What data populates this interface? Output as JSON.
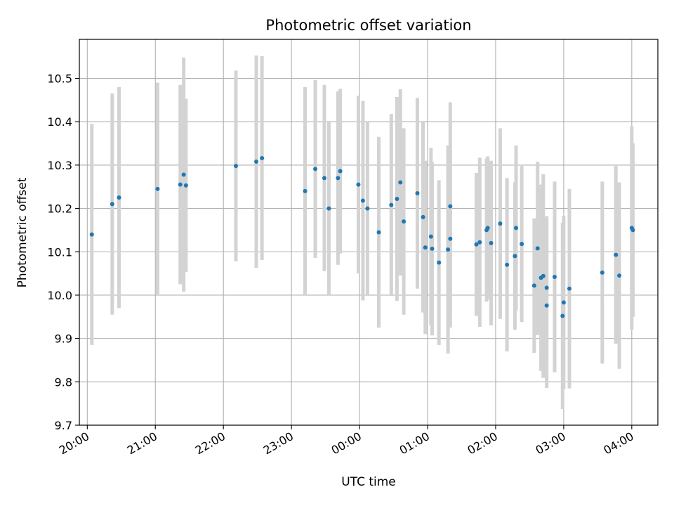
{
  "chart_data": {
    "type": "scatter",
    "title": "Photometric offset variation",
    "xlabel": "UTC time",
    "ylabel": "Photometric offset",
    "grid": true,
    "xlim": [
      "19:53",
      "04:23"
    ],
    "ylim": [
      9.7,
      10.59
    ],
    "x_ticks": [
      "20:00",
      "21:00",
      "22:00",
      "23:00",
      "00:00",
      "01:00",
      "02:00",
      "03:00",
      "04:00"
    ],
    "y_ticks": [
      "9.7",
      "9.8",
      "9.9",
      "10.0",
      "10.1",
      "10.2",
      "10.3",
      "10.4",
      "10.5"
    ],
    "point_color": "#1f77b4",
    "errorbar_color": "#d3d3d3",
    "series": [
      {
        "x": [
          "20:04",
          "20:22",
          "20:28",
          "21:02",
          "21:22",
          "21:25",
          "21:27",
          "22:11",
          "22:29",
          "22:34",
          "23:12",
          "23:21",
          "23:29",
          "23:33",
          "23:41",
          "23:43",
          "23:59",
          "00:03",
          "00:07",
          "00:17",
          "00:28",
          "00:33",
          "00:36",
          "00:39",
          "00:51",
          "00:56",
          "00:58",
          "01:03",
          "01:04",
          "01:10",
          "01:18",
          "01:20",
          "01:20",
          "01:43",
          "01:46",
          "01:52",
          "01:53",
          "01:56",
          "02:04",
          "02:10",
          "02:17",
          "02:18",
          "02:23",
          "02:34",
          "02:37",
          "02:40",
          "02:42",
          "02:45",
          "02:45",
          "02:52",
          "02:59",
          "03:00",
          "03:05",
          "03:34",
          "03:46",
          "03:49",
          "04:00",
          "04:01"
        ],
        "y": [
          10.14,
          10.21,
          10.225,
          10.245,
          10.255,
          10.278,
          10.253,
          10.298,
          10.308,
          10.316,
          10.24,
          10.291,
          10.27,
          10.2,
          10.27,
          10.286,
          10.255,
          10.218,
          10.2,
          10.145,
          10.208,
          10.222,
          10.26,
          10.17,
          10.235,
          10.18,
          10.11,
          10.135,
          10.107,
          10.075,
          10.105,
          10.205,
          10.13,
          10.117,
          10.122,
          10.15,
          10.155,
          10.12,
          10.165,
          10.07,
          10.09,
          10.155,
          10.118,
          10.022,
          10.108,
          10.04,
          10.044,
          9.976,
          10.017,
          10.042,
          9.952,
          9.983,
          10.015,
          10.052,
          10.093,
          10.045,
          10.155,
          10.15
        ],
        "y_err": [
          0.255,
          0.255,
          0.255,
          0.245,
          0.23,
          0.27,
          0.2,
          0.22,
          0.245,
          0.235,
          0.24,
          0.205,
          0.215,
          0.2,
          0.2,
          0.19,
          0.205,
          0.23,
          0.2,
          0.22,
          0.21,
          0.235,
          0.215,
          0.215,
          0.22,
          0.22,
          0.2,
          0.205,
          0.2,
          0.19,
          0.24,
          0.24,
          0.205,
          0.165,
          0.195,
          0.165,
          0.165,
          0.19,
          0.22,
          0.2,
          0.17,
          0.19,
          0.18,
          0.155,
          0.2,
          0.215,
          0.235,
          0.19,
          0.165,
          0.22,
          0.215,
          0.2,
          0.23,
          0.21,
          0.205,
          0.215,
          0.235,
          0.2
        ]
      }
    ]
  }
}
